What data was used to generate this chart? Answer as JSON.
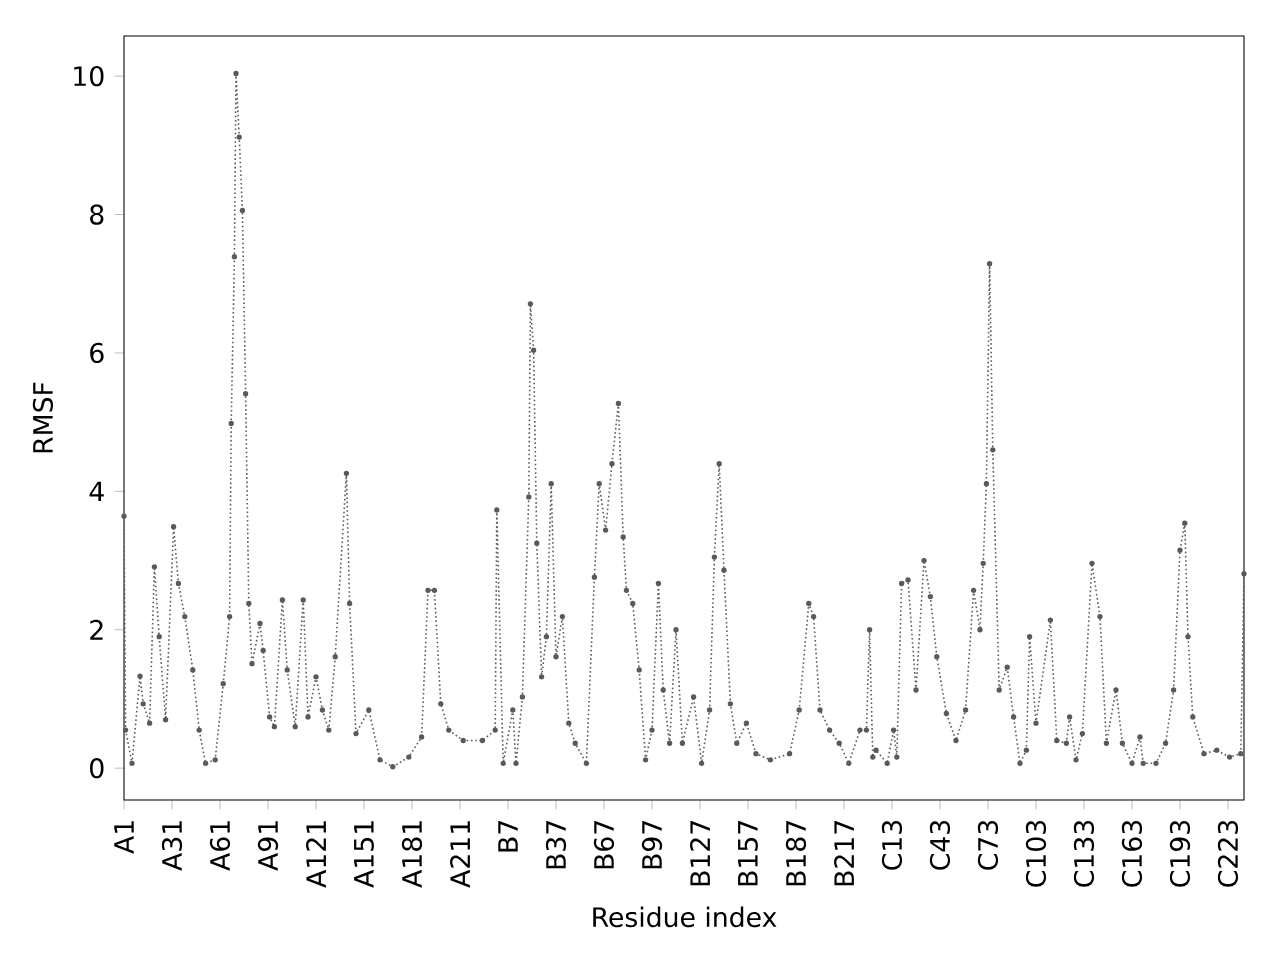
{
  "chart_data": {
    "type": "line",
    "xlabel": "Residue index",
    "ylabel": "RMSF",
    "ylim": [
      -0.46,
      10.58
    ],
    "yticks": [
      0,
      2,
      4,
      6,
      8,
      10
    ],
    "marker": "circle",
    "line_style": "dotted",
    "categories": [
      "A1",
      null,
      null,
      null,
      null,
      null,
      null,
      null,
      null,
      null,
      null,
      null,
      null,
      null,
      null,
      null,
      null,
      null,
      null,
      null,
      null,
      null,
      null,
      null,
      null,
      null,
      null,
      null,
      null,
      null,
      "A31",
      null,
      null,
      null,
      null,
      null,
      null,
      null,
      null,
      null,
      null,
      null,
      null,
      null,
      null,
      null,
      null,
      null,
      null,
      null,
      null,
      null,
      null,
      null,
      null,
      null,
      null,
      null,
      null,
      null,
      "A61",
      null,
      null,
      null,
      null,
      null,
      null,
      null,
      null,
      null,
      null,
      null,
      null,
      null,
      null,
      null,
      null,
      null,
      null,
      null,
      null,
      null,
      null,
      null,
      null,
      null,
      null,
      null,
      null,
      null,
      "A91",
      null,
      null,
      null,
      null,
      null,
      null,
      null,
      null,
      null,
      null,
      null,
      null,
      null,
      null,
      null,
      null,
      null,
      null,
      null,
      null,
      null,
      null,
      null,
      null,
      null,
      null,
      null,
      null,
      null,
      "A121",
      null,
      null,
      null,
      null,
      null,
      null,
      null,
      null,
      null,
      null,
      null,
      null,
      null,
      null,
      null,
      null,
      null,
      null,
      null,
      null,
      null,
      null,
      null,
      null,
      null,
      null,
      null,
      null,
      null,
      "A151",
      null,
      null,
      null,
      null,
      null,
      null,
      null,
      null,
      null,
      null,
      null,
      null,
      null,
      null,
      null,
      null,
      null,
      null,
      null,
      null,
      null,
      null,
      null,
      null,
      null,
      null,
      null,
      null,
      null,
      "A181",
      null,
      null,
      null,
      null,
      null,
      null,
      null,
      null,
      null,
      null,
      null,
      null,
      null,
      null,
      null,
      null,
      null,
      null,
      null,
      null,
      null,
      null,
      null,
      null,
      null,
      null,
      null,
      null,
      null,
      "A211",
      null,
      null,
      null,
      null,
      null,
      null,
      null,
      null,
      null,
      null,
      null,
      null,
      null,
      null,
      null,
      null,
      null,
      null,
      null,
      null,
      null,
      null,
      null,
      null,
      null,
      null,
      null,
      null,
      null,
      "B7",
      null,
      null,
      null,
      null,
      null,
      null,
      null,
      null,
      null,
      null,
      null,
      null,
      null,
      null,
      null,
      null,
      null,
      null,
      null,
      null,
      null,
      null,
      null,
      null,
      null,
      null,
      null,
      null,
      null,
      "B37",
      null,
      null,
      null,
      null,
      null,
      null,
      null,
      null,
      null,
      null,
      null,
      null,
      null,
      null,
      null,
      null,
      null,
      null,
      null,
      null,
      null,
      null,
      null,
      null,
      null,
      null,
      null,
      null,
      null,
      "B67",
      null,
      null,
      null,
      null,
      null,
      null,
      null,
      null,
      null,
      null,
      null,
      null,
      null,
      null,
      null,
      null,
      null,
      null,
      null,
      null,
      null,
      null,
      null,
      null,
      null,
      null,
      null,
      null,
      null,
      "B97",
      null,
      null,
      null,
      null,
      null,
      null,
      null,
      null,
      null,
      null,
      null,
      null,
      null,
      null,
      null,
      null,
      null,
      null,
      null,
      null,
      null,
      null,
      null,
      null,
      null,
      null,
      null,
      null,
      null,
      "B127",
      null,
      null,
      null,
      null,
      null,
      null,
      null,
      null,
      null,
      null,
      null,
      null,
      null,
      null,
      null,
      null,
      null,
      null,
      null,
      null,
      null,
      null,
      null,
      null,
      null,
      null,
      null,
      null,
      null,
      "B157",
      null,
      null,
      null,
      null,
      null,
      null,
      null,
      null,
      null,
      null,
      null,
      null,
      null,
      null,
      null,
      null,
      null,
      null,
      null,
      null,
      null,
      null,
      null,
      null,
      null,
      null,
      null,
      null,
      null,
      "B187",
      null,
      null,
      null,
      null,
      null,
      null,
      null,
      null,
      null,
      null,
      null,
      null,
      null,
      null,
      null,
      null,
      null,
      null,
      null,
      null,
      null,
      null,
      null,
      null,
      null,
      null,
      null,
      null,
      null,
      "B217",
      null,
      null,
      null,
      null,
      null,
      null,
      null,
      null,
      null,
      null,
      null,
      null,
      null,
      null,
      null,
      null,
      null,
      null,
      null,
      null,
      null,
      null,
      null,
      null,
      null,
      null,
      null,
      null,
      null,
      "C13",
      null,
      null,
      null,
      null,
      null,
      null,
      null,
      null,
      null,
      null,
      null,
      null,
      null,
      null,
      null,
      null,
      null,
      null,
      null,
      null,
      null,
      null,
      null,
      null,
      null,
      null,
      null,
      null,
      null,
      "C43",
      null,
      null,
      null,
      null,
      null,
      null,
      null,
      null,
      null,
      null,
      null,
      null,
      null,
      null,
      null,
      null,
      null,
      null,
      null,
      null,
      null,
      null,
      null,
      null,
      null,
      null,
      null,
      null,
      null,
      "C73",
      null,
      null,
      null,
      null,
      null,
      null,
      null,
      null,
      null,
      null,
      null,
      null,
      null,
      null,
      null,
      null,
      null,
      null,
      null,
      null,
      null,
      null,
      null,
      null,
      null,
      null,
      null,
      null,
      null,
      "C103",
      null,
      null,
      null,
      null,
      null,
      null,
      null,
      null,
      null,
      null,
      null,
      null,
      null,
      null,
      null,
      null,
      null,
      null,
      null,
      null,
      null,
      null,
      null,
      null,
      null,
      null,
      null,
      null,
      null,
      "C133",
      null,
      null,
      null,
      null,
      null,
      null,
      null,
      null,
      null,
      null,
      null,
      null,
      null,
      null,
      null,
      null,
      null,
      null,
      null,
      null,
      null,
      null,
      null,
      null,
      null,
      null,
      null,
      null,
      null,
      "C163",
      null,
      null,
      null,
      null,
      null,
      null,
      null,
      null,
      null,
      null,
      null,
      null,
      null,
      null,
      null,
      null,
      null,
      null,
      null,
      null,
      null,
      null,
      null,
      null,
      null,
      null,
      null,
      null,
      null,
      "C193",
      null,
      null,
      null,
      null,
      null,
      null,
      null,
      null,
      null,
      null,
      null,
      null,
      null,
      null,
      null,
      null,
      null,
      null,
      null,
      null,
      null,
      null,
      null,
      null,
      null,
      null,
      null,
      null,
      null,
      "C223",
      null,
      null,
      null,
      null,
      null,
      null,
      null,
      null,
      null,
      null
    ],
    "series": [
      {
        "color": "#5a5a5a",
        "values": [
          3.64,
          0.55,
          null,
          null,
          null,
          0.07,
          null,
          null,
          null,
          null,
          1.33,
          null,
          0.93,
          null,
          null,
          null,
          0.65,
          null,
          null,
          2.91,
          null,
          null,
          1.9,
          null,
          null,
          null,
          0.7,
          null,
          null,
          null,
          null,
          3.49,
          null,
          null,
          2.67,
          null,
          null,
          null,
          2.19,
          null,
          null,
          null,
          null,
          1.42,
          null,
          null,
          null,
          0.55,
          null,
          null,
          null,
          0.07,
          null,
          null,
          null,
          null,
          null,
          0.12,
          null,
          null,
          null,
          null,
          1.22,
          null,
          null,
          null,
          2.19,
          4.98,
          null,
          7.39,
          10.04,
          null,
          9.12,
          null,
          8.06,
          null,
          5.41,
          null,
          2.38,
          null,
          1.51,
          null,
          null,
          null,
          null,
          2.09,
          null,
          1.7,
          null,
          null,
          null,
          0.74,
          null,
          null,
          0.6,
          null,
          null,
          null,
          null,
          2.43,
          null,
          null,
          1.42,
          null,
          null,
          null,
          null,
          0.6,
          null,
          null,
          null,
          null,
          2.43,
          null,
          null,
          0.74,
          null,
          null,
          null,
          null,
          1.32,
          null,
          null,
          null,
          0.84,
          null,
          null,
          null,
          0.55,
          null,
          null,
          null,
          1.61,
          null,
          null,
          null,
          null,
          null,
          null,
          4.26,
          null,
          2.38,
          null,
          null,
          null,
          0.5,
          null,
          null,
          null,
          null,
          null,
          null,
          null,
          0.84,
          null,
          null,
          null,
          null,
          null,
          null,
          0.12,
          null,
          null,
          null,
          null,
          null,
          null,
          null,
          0.02,
          null,
          null,
          null,
          null,
          null,
          null,
          null,
          null,
          null,
          0.16,
          null,
          null,
          null,
          null,
          null,
          null,
          null,
          0.45,
          null,
          null,
          null,
          2.57,
          null,
          null,
          null,
          2.57,
          null,
          null,
          null,
          0.93,
          null,
          null,
          null,
          null,
          0.55,
          null,
          null,
          null,
          null,
          null,
          null,
          null,
          null,
          0.4,
          null,
          null,
          null,
          null,
          null,
          null,
          null,
          null,
          null,
          null,
          null,
          0.4,
          null,
          null,
          null,
          null,
          null,
          null,
          null,
          0.55,
          3.73,
          null,
          null,
          null,
          0.07,
          null,
          null,
          null,
          null,
          null,
          0.84,
          null,
          0.07,
          null,
          null,
          null,
          1.03,
          null,
          null,
          null,
          3.92,
          6.71,
          null,
          6.04,
          null,
          3.25,
          null,
          null,
          1.32,
          null,
          null,
          1.9,
          null,
          null,
          4.11,
          null,
          null,
          1.61,
          null,
          null,
          null,
          2.19,
          null,
          null,
          null,
          0.65,
          null,
          null,
          null,
          0.36,
          null,
          null,
          null,
          null,
          null,
          null,
          0.07,
          null,
          null,
          null,
          null,
          2.76,
          null,
          null,
          4.11,
          null,
          null,
          null,
          3.44,
          null,
          null,
          null,
          4.4,
          null,
          null,
          null,
          5.27,
          null,
          null,
          3.34,
          null,
          2.57,
          null,
          null,
          null,
          2.38,
          null,
          null,
          null,
          1.42,
          null,
          null,
          null,
          0.12,
          null,
          null,
          null,
          0.55,
          null,
          null,
          null,
          2.67,
          null,
          null,
          1.13,
          null,
          null,
          null,
          0.36,
          null,
          null,
          null,
          2.0,
          null,
          null,
          null,
          0.36,
          null,
          null,
          null,
          null,
          null,
          null,
          1.03,
          null,
          null,
          null,
          null,
          0.07,
          null,
          null,
          null,
          null,
          0.84,
          null,
          null,
          3.05,
          null,
          null,
          4.4,
          null,
          null,
          2.86,
          null,
          null,
          null,
          0.93,
          null,
          null,
          null,
          0.36,
          null,
          null,
          null,
          null,
          null,
          0.65,
          null,
          null,
          null,
          null,
          null,
          0.21,
          null,
          null,
          null,
          null,
          null,
          null,
          null,
          null,
          0.12,
          null,
          null,
          null,
          null,
          null,
          null,
          null,
          null,
          null,
          null,
          null,
          0.21,
          null,
          null,
          null,
          null,
          null,
          0.84,
          null,
          null,
          null,
          null,
          null,
          2.38,
          null,
          null,
          2.19,
          null,
          null,
          null,
          0.84,
          null,
          null,
          null,
          null,
          null,
          0.55,
          null,
          null,
          null,
          null,
          null,
          0.36,
          null,
          null,
          null,
          null,
          null,
          0.07,
          null,
          null,
          null,
          null,
          null,
          null,
          0.55,
          null,
          null,
          null,
          0.55,
          null,
          2.0,
          null,
          0.16,
          null,
          0.26,
          null,
          null,
          null,
          null,
          null,
          null,
          0.07,
          null,
          null,
          null,
          0.55,
          null,
          0.16,
          null,
          null,
          2.67,
          null,
          null,
          null,
          2.72,
          null,
          null,
          null,
          null,
          1.13,
          null,
          null,
          null,
          null,
          3.0,
          null,
          null,
          null,
          2.48,
          null,
          null,
          null,
          1.61,
          null,
          null,
          null,
          null,
          null,
          0.79,
          null,
          null,
          null,
          null,
          null,
          0.4,
          null,
          null,
          null,
          null,
          null,
          0.84,
          null,
          null,
          null,
          null,
          2.57,
          null,
          null,
          null,
          2.0,
          null,
          2.96,
          null,
          4.11,
          null,
          7.29,
          null,
          4.6,
          null,
          null,
          null,
          1.13,
          null,
          null,
          null,
          null,
          1.46,
          null,
          null,
          null,
          0.74,
          null,
          null,
          null,
          0.07,
          null,
          null,
          null,
          0.26,
          null,
          1.9,
          null,
          null,
          null,
          0.65,
          null,
          null,
          null,
          null,
          null,
          null,
          null,
          null,
          2.14,
          null,
          null,
          null,
          0.4,
          null,
          null,
          null,
          null,
          null,
          0.36,
          null,
          0.74,
          null,
          null,
          null,
          0.12,
          null,
          null,
          null,
          0.5,
          null,
          null,
          null,
          null,
          null,
          2.96,
          null,
          null,
          null,
          null,
          2.19,
          null,
          null,
          null,
          0.36,
          null,
          null,
          null,
          null,
          null,
          1.13,
          null,
          null,
          null,
          0.36,
          null,
          null,
          null,
          null,
          null,
          0.07,
          null,
          null,
          null,
          null,
          0.45,
          null,
          0.07,
          null,
          null,
          null,
          null,
          null,
          null,
          null,
          0.07,
          null,
          null,
          null,
          null,
          null,
          0.36,
          null,
          null,
          null,
          null,
          1.13,
          null,
          null,
          null,
          3.15,
          null,
          null,
          3.54,
          null,
          1.9,
          null,
          null,
          0.74,
          null,
          null,
          null,
          null,
          null,
          null,
          0.21,
          null,
          null,
          null,
          null,
          null,
          null,
          null,
          0.26,
          null,
          null,
          null,
          null,
          null,
          null,
          null,
          0.16,
          null,
          null,
          null,
          null,
          null,
          null,
          0.21,
          null,
          2.81
        ]
      }
    ]
  }
}
